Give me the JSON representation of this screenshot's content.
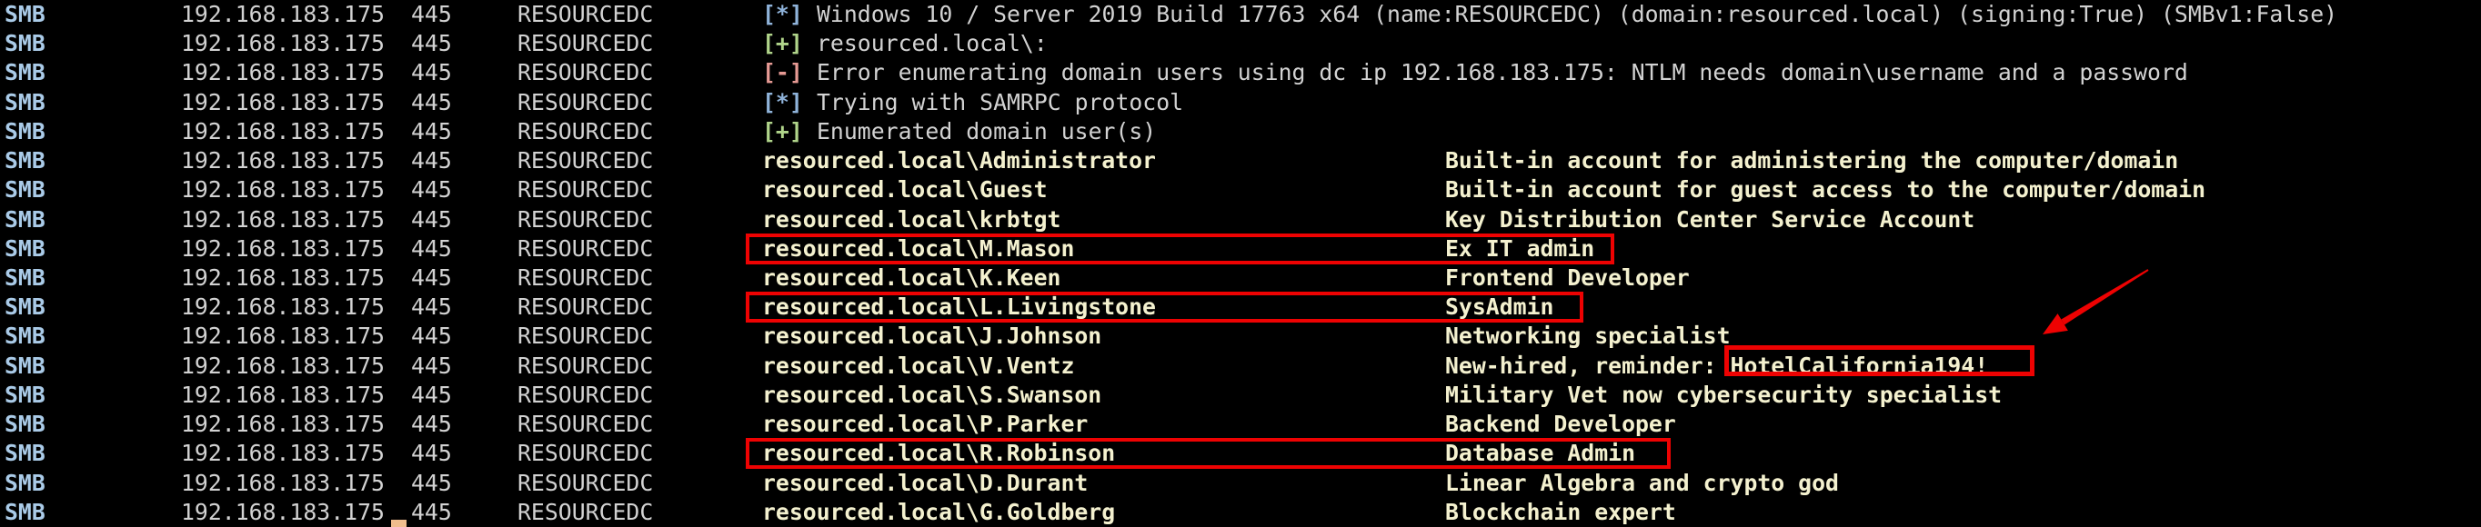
{
  "terminal": {
    "protocol": "SMB",
    "host": "192.168.183.175",
    "port": "445",
    "hostname": "RESOURCEDC",
    "status_lines": [
      {
        "marker": "[*]",
        "type": "info",
        "text": "Windows 10 / Server 2019 Build 17763 x64 (name:RESOURCEDC) (domain:resourced.local) (signing:True) (SMBv1:False)"
      },
      {
        "marker": "[+]",
        "type": "success",
        "text": "resourced.local\\:"
      },
      {
        "marker": "[-]",
        "type": "error",
        "text": "Error enumerating domain users using dc ip 192.168.183.175: NTLM needs domain\\username and a password"
      },
      {
        "marker": "[*]",
        "type": "info",
        "text": "Trying with SAMRPC protocol"
      },
      {
        "marker": "[+]",
        "type": "success",
        "text": "Enumerated domain user(s)"
      }
    ],
    "users": [
      {
        "name": "resourced.local\\Administrator",
        "description": "Built-in account for administering the computer/domain",
        "highlighted": false
      },
      {
        "name": "resourced.local\\Guest",
        "description": "Built-in account for guest access to the computer/domain",
        "highlighted": false
      },
      {
        "name": "resourced.local\\krbtgt",
        "description": "Key Distribution Center Service Account",
        "highlighted": false
      },
      {
        "name": "resourced.local\\M.Mason",
        "description": "Ex IT admin",
        "highlighted": true
      },
      {
        "name": "resourced.local\\K.Keen",
        "description": "Frontend Developer",
        "highlighted": false
      },
      {
        "name": "resourced.local\\L.Livingstone",
        "description": "SysAdmin",
        "highlighted": true
      },
      {
        "name": "resourced.local\\J.Johnson",
        "description": "Networking specialist",
        "highlighted": false
      },
      {
        "name": "resourced.local\\V.Ventz",
        "description_prefix": "New-hired, reminder: ",
        "password": "HotelCalifornia194!",
        "highlighted": false,
        "password_highlighted": true
      },
      {
        "name": "resourced.local\\S.Swanson",
        "description": "Military Vet now cybersecurity specialist",
        "highlighted": false
      },
      {
        "name": "resourced.local\\P.Parker",
        "description": "Backend Developer",
        "highlighted": false
      },
      {
        "name": "resourced.local\\R.Robinson",
        "description": "Database Admin",
        "highlighted": true
      },
      {
        "name": "resourced.local\\D.Durant",
        "description": "Linear Algebra and crypto god",
        "highlighted": false
      },
      {
        "name": "resourced.local\\G.Goldberg",
        "description": "Blockchain expert",
        "highlighted": false
      }
    ]
  },
  "colors": {
    "background": "#000000",
    "protocol_blue": "#aacbe8",
    "text_gray": "#d2d2d2",
    "info_blue": "#8fb3da",
    "success_green": "#b0d48a",
    "error_salmon": "#e69a94",
    "user_cream": "#f4f1cf",
    "annotation_red": "#ee0202",
    "cursor_peach": "#f0bd8d"
  }
}
